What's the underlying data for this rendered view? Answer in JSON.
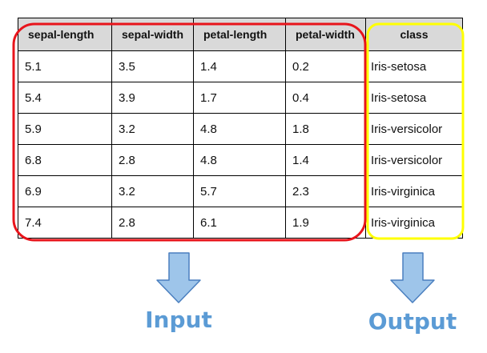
{
  "table": {
    "columns": [
      "sepal-length",
      "sepal-width",
      "petal-length",
      "petal-width",
      "class"
    ],
    "rows": [
      [
        "5.1",
        "3.5",
        "1.4",
        "0.2",
        "Iris-setosa"
      ],
      [
        "5.4",
        "3.9",
        "1.7",
        "0.4",
        "Iris-setosa"
      ],
      [
        "5.9",
        "3.2",
        "4.8",
        "1.8",
        "Iris-versicolor"
      ],
      [
        "6.8",
        "2.8",
        "4.8",
        "1.4",
        "Iris-versicolor"
      ],
      [
        "6.9",
        "3.2",
        "5.7",
        "2.3",
        "Iris-virginica"
      ],
      [
        "7.4",
        "2.8",
        "6.1",
        "1.9",
        "Iris-virginica"
      ]
    ]
  },
  "labels": {
    "input": "Input",
    "output": "Output"
  },
  "colors": {
    "input_outline": "#e8141b",
    "output_outline": "#ffff00",
    "arrow_fill": "#9ec5ea",
    "arrow_stroke": "#4a7fbf",
    "caption": "#5b9bd5",
    "header_bg": "#d9d9d9"
  }
}
